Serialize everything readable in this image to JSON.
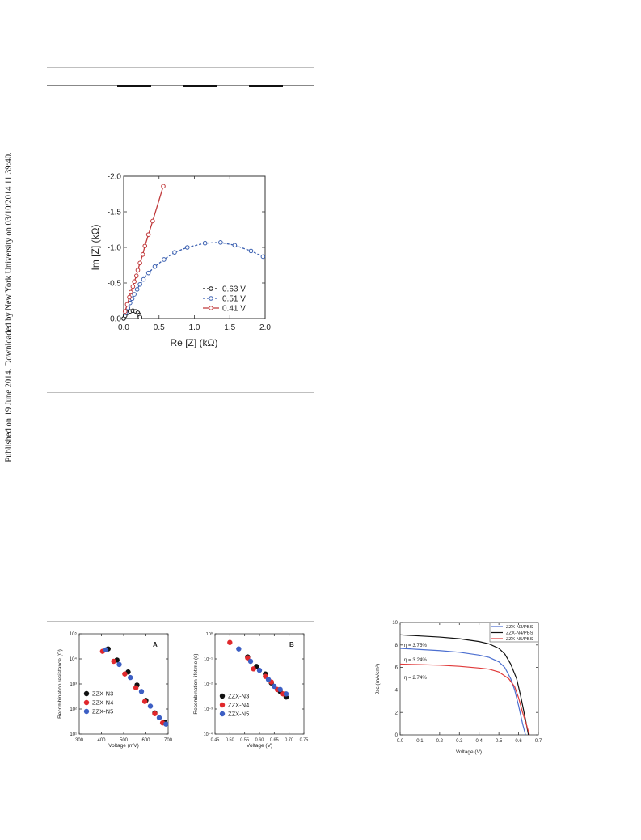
{
  "sidenote": "Published on 19 June 2014. Downloaded by New York University on 03/10/2014 11:39:40.",
  "chart_data": [
    {
      "type": "scatter",
      "xlabel": "Re [Z] (kΩ)",
      "ylabel": "Im [Z] (kΩ)",
      "xlim": [
        0.0,
        2.0
      ],
      "ylim": [
        0.0,
        -2.0
      ],
      "xticks": [
        "0.0",
        "0.5",
        "1.0",
        "1.5",
        "2.0"
      ],
      "yticks": [
        "0.0",
        "-0.5",
        "-1.0",
        "-1.5",
        "-2.0"
      ],
      "legend_position": "lower-right",
      "series": [
        {
          "name": "0.63 V",
          "color": "#111111",
          "style": "dashed",
          "x": [
            0.0,
            0.02,
            0.05,
            0.09,
            0.13,
            0.17,
            0.2,
            0.22,
            0.23
          ],
          "y": [
            0.0,
            -0.04,
            -0.08,
            -0.1,
            -0.11,
            -0.1,
            -0.08,
            -0.05,
            -0.02
          ]
        },
        {
          "name": "0.51 V",
          "color": "#3a5fb0",
          "style": "dashed",
          "x": [
            0.03,
            0.06,
            0.09,
            0.12,
            0.15,
            0.19,
            0.23,
            0.28,
            0.35,
            0.44,
            0.57,
            0.72,
            0.9,
            1.15,
            1.37,
            1.57,
            1.8,
            1.97
          ],
          "y": [
            -0.08,
            -0.15,
            -0.22,
            -0.28,
            -0.34,
            -0.41,
            -0.48,
            -0.55,
            -0.64,
            -0.73,
            -0.83,
            -0.93,
            -1.0,
            -1.06,
            -1.07,
            -1.03,
            -0.95,
            -0.87
          ]
        },
        {
          "name": "0.41 V",
          "color": "#c0393b",
          "style": "solid",
          "x": [
            0.02,
            0.05,
            0.08,
            0.1,
            0.13,
            0.15,
            0.18,
            0.2,
            0.23,
            0.27,
            0.3,
            0.35,
            0.41,
            0.56
          ],
          "y": [
            -0.1,
            -0.2,
            -0.3,
            -0.37,
            -0.45,
            -0.52,
            -0.6,
            -0.68,
            -0.78,
            -0.9,
            -1.02,
            -1.18,
            -1.37,
            -1.86
          ]
        }
      ]
    },
    {
      "type": "scatter",
      "panel_label": "A",
      "xlabel": "Voltage (mV)",
      "ylabel": "Recombination resistance (Ω)",
      "log_y": true,
      "xlim": [
        300,
        700
      ],
      "ylim": [
        10,
        100000
      ],
      "xticks": [
        "300",
        "400",
        "500",
        "600",
        "700"
      ],
      "yticks": [
        "10¹",
        "10²",
        "10³",
        "10⁴",
        "10⁵"
      ],
      "legend_position": "lower-left",
      "series": [
        {
          "name": "ZZX-N3",
          "color": "#111111",
          "x": [
            430,
            470,
            520,
            560,
            600,
            640,
            685
          ],
          "y": [
            25000,
            9000,
            3000,
            900,
            220,
            70,
            30
          ]
        },
        {
          "name": "ZZX-N4",
          "color": "#e0282c",
          "x": [
            405,
            455,
            505,
            555,
            595,
            640,
            675
          ],
          "y": [
            20000,
            8000,
            2500,
            700,
            200,
            65,
            28
          ]
        },
        {
          "name": "ZZX-N5",
          "color": "#3d5fc4",
          "x": [
            420,
            480,
            530,
            580,
            620,
            660,
            690
          ],
          "y": [
            23000,
            6000,
            1800,
            500,
            130,
            45,
            25
          ]
        }
      ]
    },
    {
      "type": "scatter",
      "panel_label": "B",
      "xlabel": "Voltage (V)",
      "ylabel": "Recombination lifetime (s)",
      "log_y": true,
      "xlim": [
        0.45,
        0.75
      ],
      "ylim": [
        0.0001,
        1
      ],
      "xticks": [
        "0.45",
        "0.50",
        "0.55",
        "0.60",
        "0.65",
        "0.70",
        "0.75"
      ],
      "yticks": [
        "10⁻⁴",
        "10⁻³",
        "10⁻²",
        "10⁻¹",
        "10⁰"
      ],
      "legend_position": "lower-left",
      "series": [
        {
          "name": "ZZX-N3",
          "color": "#111111",
          "x": [
            0.56,
            0.59,
            0.62,
            0.64,
            0.67,
            0.69
          ],
          "y": [
            0.12,
            0.05,
            0.025,
            0.011,
            0.005,
            0.003
          ]
        },
        {
          "name": "ZZX-N4",
          "color": "#e0282c",
          "x": [
            0.5,
            0.56,
            0.58,
            0.62,
            0.64,
            0.66,
            0.68
          ],
          "y": [
            0.45,
            0.11,
            0.04,
            0.02,
            0.012,
            0.006,
            0.004
          ]
        },
        {
          "name": "ZZX-N5",
          "color": "#3d5fc4",
          "x": [
            0.53,
            0.57,
            0.6,
            0.63,
            0.65,
            0.67,
            0.69
          ],
          "y": [
            0.25,
            0.08,
            0.035,
            0.015,
            0.008,
            0.006,
            0.004
          ]
        }
      ]
    },
    {
      "type": "line",
      "xlabel": "Voltage (V)",
      "ylabel": "Jsc (mA/cm²)",
      "xlim": [
        0.0,
        0.7
      ],
      "ylim": [
        0,
        10
      ],
      "xticks": [
        "0.0",
        "0.1",
        "0.2",
        "0.3",
        "0.4",
        "0.5",
        "0.6",
        "0.7"
      ],
      "yticks": [
        "0",
        "2",
        "4",
        "6",
        "8",
        "10"
      ],
      "legend_position": "top-right",
      "annotations": [
        "η = 3.75%",
        "η = 3.24%",
        "η = 2.74%"
      ],
      "series": [
        {
          "name": "ZZX-N3/PBS",
          "color": "#4c6fd0",
          "x": [
            0.0,
            0.1,
            0.2,
            0.3,
            0.4,
            0.45,
            0.5,
            0.53,
            0.56,
            0.58,
            0.6,
            0.62,
            0.635
          ],
          "y": [
            7.7,
            7.6,
            7.5,
            7.35,
            7.1,
            6.9,
            6.5,
            6.0,
            5.0,
            4.0,
            2.6,
            1.0,
            0.0
          ]
        },
        {
          "name": "ZZX-N4/PBS",
          "color": "#111111",
          "x": [
            0.0,
            0.1,
            0.2,
            0.3,
            0.4,
            0.45,
            0.5,
            0.53,
            0.56,
            0.59,
            0.61,
            0.63,
            0.65
          ],
          "y": [
            8.9,
            8.8,
            8.7,
            8.55,
            8.3,
            8.1,
            7.7,
            7.2,
            6.3,
            5.0,
            3.5,
            1.8,
            0.0
          ]
        },
        {
          "name": "ZZX-N5/PBS",
          "color": "#e03a3a",
          "x": [
            0.0,
            0.1,
            0.2,
            0.3,
            0.4,
            0.45,
            0.5,
            0.55,
            0.58,
            0.6,
            0.62,
            0.64,
            0.655
          ],
          "y": [
            6.3,
            6.25,
            6.2,
            6.1,
            5.95,
            5.85,
            5.6,
            5.0,
            4.3,
            3.3,
            2.0,
            0.9,
            0.0
          ]
        }
      ]
    }
  ]
}
